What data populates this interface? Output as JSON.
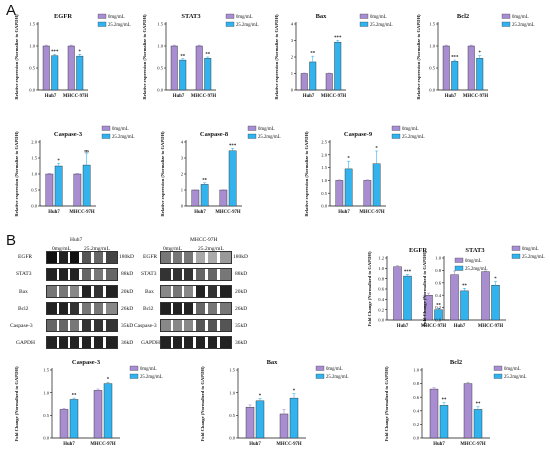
{
  "panels": {
    "a": "A",
    "b": "B"
  },
  "chart_data": [
    {
      "id": "egfr_a",
      "type": "bar",
      "title": "EGFR",
      "ylabel": "Relative expression (Normalize to GAPDH)",
      "categories": [
        "Huh7",
        "MHCC-97H"
      ],
      "ylim": [
        0,
        1.5
      ],
      "yticks": [
        "0.0",
        "0.5",
        "1.0",
        "1.5"
      ],
      "legend": "top-right",
      "series": [
        {
          "name": "0mg/mL",
          "color": "#a88ed0",
          "values": [
            1.0,
            1.0
          ],
          "errors": [
            0.02,
            0.02
          ],
          "sig": [
            "",
            ""
          ]
        },
        {
          "name": "25.2mg/mL",
          "color": "#33b3ee",
          "values": [
            0.78,
            0.77
          ],
          "errors": [
            0.03,
            0.04
          ],
          "sig": [
            "***",
            "*"
          ]
        }
      ]
    },
    {
      "id": "stat3_a",
      "type": "bar",
      "title": "STAT3",
      "ylabel": "Relative expression (Normalize to GAPDH)",
      "categories": [
        "Huh7",
        "MHCC-97H"
      ],
      "ylim": [
        0,
        1.5
      ],
      "yticks": [
        "0.0",
        "0.5",
        "1.0",
        "1.5"
      ],
      "legend": "top-right",
      "series": [
        {
          "name": "0mg/mL",
          "color": "#a88ed0",
          "values": [
            1.0,
            1.0
          ],
          "errors": [
            0.02,
            0.02
          ],
          "sig": [
            "",
            ""
          ]
        },
        {
          "name": "25.2mg/mL",
          "color": "#33b3ee",
          "values": [
            0.68,
            0.72
          ],
          "errors": [
            0.03,
            0.03
          ],
          "sig": [
            "**",
            "**"
          ]
        }
      ]
    },
    {
      "id": "bax_a",
      "type": "bar",
      "title": "Bax",
      "ylabel": "Relative expression (Normalize to GAPDH)",
      "categories": [
        "Huh7",
        "MHCC-97H"
      ],
      "ylim": [
        0,
        4
      ],
      "yticks": [
        "0",
        "1",
        "2",
        "3",
        "4"
      ],
      "legend": "top-right",
      "series": [
        {
          "name": "0mg/mL",
          "color": "#a88ed0",
          "values": [
            1.0,
            1.0
          ],
          "errors": [
            0.03,
            0.03
          ],
          "sig": [
            "",
            ""
          ]
        },
        {
          "name": "25.2mg/mL",
          "color": "#33b3ee",
          "values": [
            1.7,
            2.9
          ],
          "errors": [
            0.35,
            0.1
          ],
          "sig": [
            "**",
            "***"
          ]
        }
      ]
    },
    {
      "id": "bcl2_a",
      "type": "bar",
      "title": "Bcl2",
      "ylabel": "Relative expression (Normalize to GAPDH)",
      "categories": [
        "Huh7",
        "MHCC-97H"
      ],
      "ylim": [
        0,
        1.5
      ],
      "yticks": [
        "0.0",
        "0.5",
        "1.0",
        "1.5"
      ],
      "legend": "top-right",
      "series": [
        {
          "name": "0mg/mL",
          "color": "#a88ed0",
          "values": [
            1.0,
            1.0
          ],
          "errors": [
            0.02,
            0.02
          ],
          "sig": [
            "",
            ""
          ]
        },
        {
          "name": "25.2mg/mL",
          "color": "#33b3ee",
          "values": [
            0.65,
            0.72
          ],
          "errors": [
            0.03,
            0.06
          ],
          "sig": [
            "***",
            "*"
          ]
        }
      ]
    },
    {
      "id": "casp3_a",
      "type": "bar",
      "title": "Caspase-3",
      "ylabel": "Relative expression (Normalize to GAPDH)",
      "categories": [
        "Huh7",
        "MHCC-97H"
      ],
      "ylim": [
        0,
        2.0
      ],
      "yticks": [
        "0.0",
        "0.5",
        "1.0",
        "1.5",
        "2.0"
      ],
      "legend": "top-right",
      "series": [
        {
          "name": "0mg/mL",
          "color": "#a88ed0",
          "values": [
            1.0,
            1.0
          ],
          "errors": [
            0.02,
            0.02
          ],
          "sig": [
            "",
            ""
          ]
        },
        {
          "name": "25.2mg/mL",
          "color": "#33b3ee",
          "values": [
            1.25,
            1.28
          ],
          "errors": [
            0.08,
            0.35
          ],
          "sig": [
            "*",
            "ns"
          ]
        }
      ]
    },
    {
      "id": "casp8_a",
      "type": "bar",
      "title": "Caspase-8",
      "ylabel": "Relative expression (Normalize to GAPDH)",
      "categories": [
        "Huh7",
        "MHCC-97H"
      ],
      "ylim": [
        0,
        4
      ],
      "yticks": [
        "0",
        "1",
        "2",
        "3",
        "4"
      ],
      "legend": "top-right",
      "series": [
        {
          "name": "0mg/mL",
          "color": "#a88ed0",
          "values": [
            1.0,
            1.0
          ],
          "errors": [
            0.02,
            0.02
          ],
          "sig": [
            "",
            ""
          ]
        },
        {
          "name": "25.2mg/mL",
          "color": "#33b3ee",
          "values": [
            1.35,
            3.45
          ],
          "errors": [
            0.1,
            0.15
          ],
          "sig": [
            "**",
            "***"
          ]
        }
      ]
    },
    {
      "id": "casp9_a",
      "type": "bar",
      "title": "Caspase-9",
      "ylabel": "Relative expression (Normalize to GAPDH)",
      "categories": [
        "Huh7",
        "MHCC-97H"
      ],
      "ylim": [
        0,
        2.5
      ],
      "yticks": [
        "0.0",
        "0.5",
        "1.0",
        "1.5",
        "2.0",
        "2.5"
      ],
      "legend": "top-right",
      "series": [
        {
          "name": "0mg/mL",
          "color": "#a88ed0",
          "values": [
            1.0,
            1.0
          ],
          "errors": [
            0.02,
            0.02
          ],
          "sig": [
            "",
            ""
          ]
        },
        {
          "name": "25.2mg/mL",
          "color": "#33b3ee",
          "values": [
            1.45,
            1.65
          ],
          "errors": [
            0.3,
            0.5
          ],
          "sig": [
            "*",
            "*"
          ]
        }
      ]
    },
    {
      "id": "egfr_b",
      "type": "bar",
      "title": "EGFR",
      "ylabel": "Fold Change (Normalized to GAPDH)",
      "categories": [
        "Huh7",
        "MHCC-97H"
      ],
      "ylim": [
        0,
        1.2
      ],
      "yticks": [
        "0.0",
        "0.2",
        "0.4",
        "0.6",
        "0.8",
        "1.0",
        "1.2"
      ],
      "legend": "top-right",
      "series": [
        {
          "name": "0mg/mL",
          "color": "#a88ed0",
          "values": [
            1.03,
            0.48
          ],
          "errors": [
            0.02,
            0.04
          ],
          "sig": [
            "",
            ""
          ]
        },
        {
          "name": "25.2mg/mL",
          "color": "#33b3ee",
          "values": [
            0.85,
            0.2
          ],
          "errors": [
            0.03,
            0.03
          ],
          "sig": [
            "***",
            "**"
          ]
        }
      ]
    },
    {
      "id": "stat3_b",
      "type": "bar",
      "title": "STAT3",
      "ylabel": "Fold Change (Normalized to GAPDH)",
      "categories": [
        "Huh7",
        "MHCC-97H"
      ],
      "ylim": [
        0,
        1.0
      ],
      "yticks": [
        "0.0",
        "0.2",
        "0.4",
        "0.6",
        "0.8",
        "1.0"
      ],
      "legend": "top-right",
      "series": [
        {
          "name": "0mg/mL",
          "color": "#a88ed0",
          "values": [
            0.73,
            0.78
          ],
          "errors": [
            0.06,
            0.01
          ],
          "sig": [
            "",
            ""
          ]
        },
        {
          "name": "25.2mg/mL",
          "color": "#33b3ee",
          "values": [
            0.47,
            0.56
          ],
          "errors": [
            0.04,
            0.06
          ],
          "sig": [
            "**",
            "*"
          ]
        }
      ]
    },
    {
      "id": "casp3_b",
      "type": "bar",
      "title": "Caspase-3",
      "ylabel": "Fold Change (Normalized to GAPDH)",
      "categories": [
        "Huh7",
        "MHCC-97H"
      ],
      "ylim": [
        0,
        1.5
      ],
      "yticks": [
        "0.0",
        "0.5",
        "1.0",
        "1.5"
      ],
      "legend": "top-right",
      "series": [
        {
          "name": "0mg/mL",
          "color": "#a88ed0",
          "values": [
            0.63,
            1.05
          ],
          "errors": [
            0.02,
            0.03
          ],
          "sig": [
            "",
            ""
          ]
        },
        {
          "name": "25.2mg/mL",
          "color": "#33b3ee",
          "values": [
            0.85,
            1.2
          ],
          "errors": [
            0.03,
            0.03
          ],
          "sig": [
            "**",
            "*"
          ]
        }
      ]
    },
    {
      "id": "bax_b",
      "type": "bar",
      "title": "Bax",
      "ylabel": "Fold Change (Normalized to GAPDH)",
      "categories": [
        "Huh7",
        "MHCC-97H"
      ],
      "ylim": [
        0,
        1.5
      ],
      "yticks": [
        "0.0",
        "0.5",
        "1.0",
        "1.5"
      ],
      "legend": "top-right",
      "series": [
        {
          "name": "0mg/mL",
          "color": "#a88ed0",
          "values": [
            0.68,
            0.53
          ],
          "errors": [
            0.05,
            0.1
          ],
          "sig": [
            "",
            ""
          ]
        },
        {
          "name": "25.2mg/mL",
          "color": "#33b3ee",
          "values": [
            0.82,
            0.88
          ],
          "errors": [
            0.05,
            0.1
          ],
          "sig": [
            "*",
            "*"
          ]
        }
      ]
    },
    {
      "id": "bcl2_b",
      "type": "bar",
      "title": "Bcl2",
      "ylabel": "Fold Change (Normalized to GAPDH)",
      "categories": [
        "Huh7",
        "MHCC-97H"
      ],
      "ylim": [
        0,
        1.0
      ],
      "yticks": [
        "0.0",
        "0.2",
        "0.4",
        "0.6",
        "0.8",
        "1.0"
      ],
      "legend": "top-right",
      "series": [
        {
          "name": "0mg/mL",
          "color": "#a88ed0",
          "values": [
            0.72,
            0.8
          ],
          "errors": [
            0.02,
            0.02
          ],
          "sig": [
            "",
            ""
          ]
        },
        {
          "name": "25.2mg/mL",
          "color": "#33b3ee",
          "values": [
            0.48,
            0.42
          ],
          "errors": [
            0.04,
            0.04
          ],
          "sig": [
            "**",
            "**"
          ]
        }
      ]
    }
  ],
  "blots": {
    "huh7": {
      "title": "Huh7",
      "group0": "0mg/mL",
      "group1": "25.2mg/mL",
      "proteins": [
        "EGFR",
        "STAT3",
        "Bax",
        "Bcl2",
        "Caspase-3",
        "GAPDH"
      ],
      "sizes": [
        "180kD",
        "88kD",
        "20kD",
        "26kD",
        "35kD",
        "36kD"
      ]
    },
    "mhcc": {
      "title": "MHCC-97H",
      "group0": "0mg/mL",
      "group1": "25.2mg/mL",
      "proteins": [
        "EGFR",
        "STAT3",
        "Bax",
        "Bcl2",
        "Caspase-3",
        "GAPDH"
      ],
      "sizes": [
        "180kD",
        "88kD",
        "20kD",
        "26kD",
        "35kD",
        "36kD"
      ]
    }
  }
}
